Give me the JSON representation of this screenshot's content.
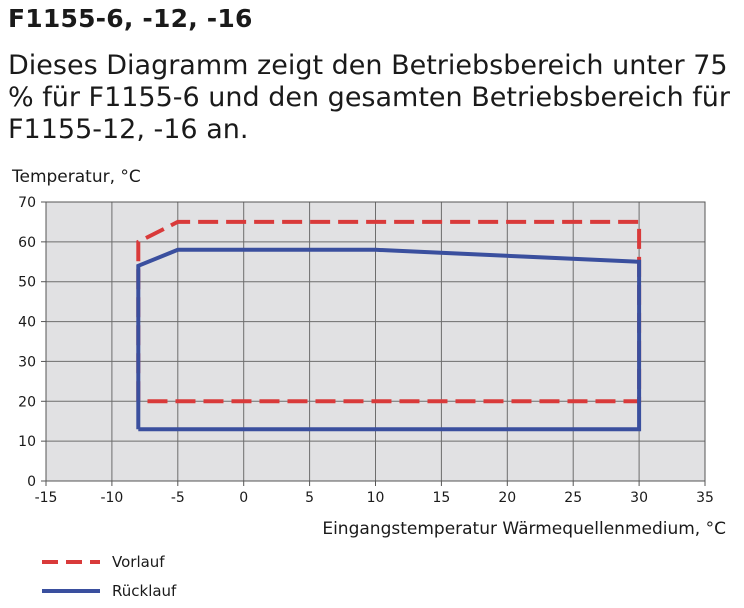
{
  "heading": "F1155-6, -12, -16",
  "description": "Dieses Diagramm zeigt den Betriebsbereich unter 75 % für F1155-6 und den gesamten Betriebsbereich für F1155-12, -16 an.",
  "chart_data": {
    "type": "line",
    "title": "",
    "xlabel": "Eingangstemperatur Wärmequellenmedium, °C",
    "ylabel": "Temperatur, °C",
    "xlim": [
      -15,
      35
    ],
    "ylim": [
      0,
      70
    ],
    "xticks": [
      -15,
      -10,
      -5,
      0,
      5,
      10,
      15,
      20,
      25,
      30,
      35
    ],
    "yticks": [
      0,
      10,
      20,
      30,
      40,
      50,
      60,
      70
    ],
    "grid": true,
    "legend_position": "bottom-left",
    "series": [
      {
        "name": "Vorlauf",
        "style": "dashed",
        "color": "#d93a3a",
        "x": [
          -8,
          -8,
          -5,
          30,
          30,
          -8
        ],
        "y": [
          20,
          60,
          65,
          65,
          20,
          20
        ]
      },
      {
        "name": "Rücklauf",
        "style": "solid",
        "color": "#3a4f9e",
        "x": [
          -8,
          -8,
          -5,
          10,
          30,
          30,
          -8
        ],
        "y": [
          13,
          54,
          58,
          58,
          55,
          13,
          13
        ]
      }
    ]
  }
}
